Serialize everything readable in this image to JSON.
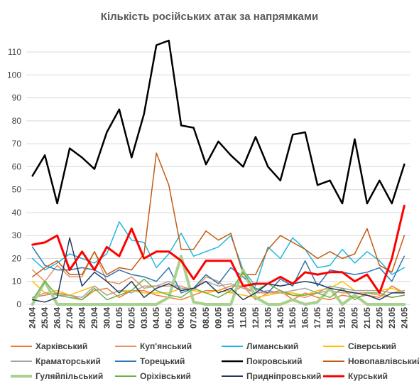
{
  "chart_data": {
    "type": "line",
    "title": "Кількість російських атак за напрямками",
    "xlabel": "",
    "ylabel": "",
    "ylim": [
      0,
      115
    ],
    "yticks": [
      0,
      10,
      20,
      30,
      40,
      50,
      60,
      70,
      80,
      90,
      100,
      110
    ],
    "grid": true,
    "legend_position": "bottom",
    "categories": [
      "24.04",
      "25.04",
      "26.04",
      "27.04",
      "28.04",
      "29.04",
      "30.04",
      "01.05",
      "02.05",
      "03.05",
      "04.05",
      "05.05",
      "06.05",
      "07.05",
      "08.05",
      "09.05",
      "10.05",
      "11.05",
      "12.05",
      "13.05",
      "14.05",
      "15.05",
      "16.05",
      "17.05",
      "18.05",
      "19.05",
      "20.05",
      "21.05",
      "22.05",
      "23.05",
      "24.05"
    ],
    "series": [
      {
        "name": "Харківський",
        "color": "#ED7D31",
        "width": 1.5,
        "values": [
          3,
          4,
          5,
          4,
          2,
          6,
          7,
          3,
          6,
          6,
          4,
          3,
          2,
          4,
          6,
          6,
          8,
          8,
          2,
          5,
          6,
          2,
          5,
          3,
          2,
          4,
          3,
          4,
          3,
          8,
          5
        ]
      },
      {
        "name": "Куп'янський",
        "color": "#E8915E",
        "width": 1.5,
        "values": [
          15,
          10,
          17,
          12,
          12,
          23,
          10,
          9,
          12,
          7,
          8,
          8,
          8,
          6,
          12,
          10,
          5,
          8,
          5,
          5,
          5,
          4,
          3,
          5,
          6,
          5,
          5,
          5,
          4,
          3,
          4
        ]
      },
      {
        "name": "Лиманський",
        "color": "#1FB8E0",
        "width": 1.5,
        "values": [
          20,
          15,
          18,
          22,
          20,
          18,
          22,
          36,
          28,
          27,
          16,
          22,
          31,
          21,
          23,
          25,
          30,
          15,
          8,
          25,
          20,
          29,
          24,
          16,
          17,
          24,
          18,
          23,
          19,
          13,
          16
        ]
      },
      {
        "name": "Сіверський",
        "color": "#FFC000",
        "width": 1.5,
        "values": [
          10,
          5,
          6,
          4,
          6,
          8,
          4,
          6,
          6,
          5,
          5,
          5,
          7,
          6,
          5,
          6,
          5,
          4,
          3,
          4,
          5,
          5,
          4,
          6,
          7,
          10,
          6,
          6,
          6,
          7,
          5
        ]
      },
      {
        "name": "Краматорський",
        "color": "#A5A5A5",
        "width": 1.5,
        "values": [
          3,
          5,
          4,
          4,
          3,
          8,
          4,
          6,
          5,
          8,
          8,
          10,
          7,
          7,
          10,
          8,
          9,
          7,
          5,
          6,
          5,
          6,
          7,
          5,
          8,
          7,
          6,
          6,
          6,
          5,
          6
        ]
      },
      {
        "name": "Торецький",
        "color": "#2E75B6",
        "width": 1.5,
        "values": [
          25,
          17,
          15,
          15,
          16,
          15,
          12,
          15,
          13,
          12,
          10,
          16,
          5,
          7,
          13,
          9,
          16,
          12,
          7,
          5,
          11,
          8,
          19,
          8,
          15,
          14,
          13,
          14,
          16,
          10,
          21
        ]
      },
      {
        "name": "Покровський",
        "color": "#000000",
        "width": 2.5,
        "values": [
          56,
          65,
          44,
          68,
          64,
          59,
          75,
          85,
          64,
          83,
          113,
          115,
          78,
          77,
          61,
          71,
          65,
          60,
          73,
          60,
          54,
          74,
          75,
          52,
          54,
          44,
          72,
          44,
          54,
          44,
          61
        ]
      },
      {
        "name": "Новопавлівський",
        "color": "#C55A11",
        "width": 1.5,
        "values": [
          12,
          16,
          19,
          13,
          13,
          23,
          13,
          16,
          15,
          22,
          66,
          52,
          24,
          24,
          32,
          28,
          31,
          13,
          13,
          24,
          30,
          27,
          24,
          20,
          23,
          20,
          22,
          33,
          17,
          14,
          30
        ]
      },
      {
        "name": "Гуляйпільський",
        "color": "#A9D18E",
        "width": 4,
        "values": [
          0,
          10,
          0,
          0,
          0,
          0,
          0,
          0,
          0,
          0,
          0,
          3,
          21,
          1,
          0,
          0,
          0,
          15,
          3,
          0,
          0,
          2,
          0,
          1,
          7,
          0,
          4,
          0,
          0,
          0,
          0
        ]
      },
      {
        "name": "Оріхівський",
        "color": "#70AD47",
        "width": 1.5,
        "values": [
          2,
          10,
          4,
          3,
          2,
          7,
          2,
          4,
          6,
          11,
          6,
          4,
          3,
          7,
          5,
          3,
          6,
          14,
          6,
          9,
          6,
          4,
          4,
          5,
          3,
          7,
          2,
          5,
          5,
          3,
          4
        ]
      },
      {
        "name": "Придніпровський",
        "color": "#203864",
        "width": 1.5,
        "values": [
          2,
          1,
          3,
          29,
          8,
          14,
          10,
          5,
          10,
          3,
          7,
          9,
          6,
          7,
          10,
          5,
          7,
          2,
          5,
          9,
          8,
          9,
          10,
          9,
          7,
          6,
          5,
          4,
          2,
          5,
          5
        ]
      },
      {
        "name": "Курський",
        "color": "#FF0000",
        "width": 3,
        "values": [
          26,
          27,
          30,
          15,
          23,
          15,
          25,
          21,
          33,
          20,
          23,
          23,
          19,
          11,
          19,
          19,
          19,
          8,
          9,
          9,
          12,
          9,
          14,
          13,
          14,
          14,
          10,
          13,
          5,
          20,
          43
        ]
      }
    ]
  }
}
